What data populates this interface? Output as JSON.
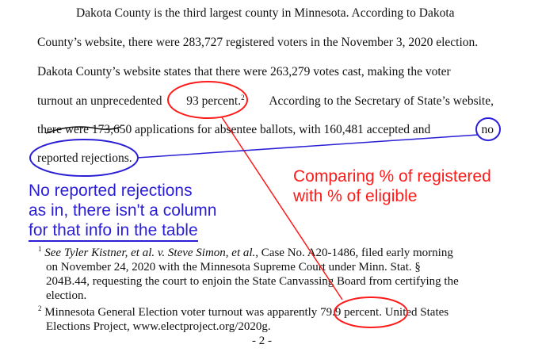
{
  "paragraph": {
    "line1": "Dakota County is the third largest county in Minnesota.  According to Dakota",
    "line2": "County’s website, there were 283,727 registered voters in the November 3, 2020 election.",
    "line3": "Dakota County’s website states that there were 263,279 votes cast, making the voter",
    "line4_a": "turnout an unprecedented",
    "line4_b": "93 percent.",
    "line4_sup": "2",
    "line4_c": "According to the Secretary of State’s website,",
    "line5_a": "there were 173,650 applications for absentee ballots, with 160,481 accepted and",
    "line5_b": "no",
    "line6": "reported rejections."
  },
  "annotations": {
    "blue_note": [
      "No reported rejections",
      "as in, there isn't a column",
      "for that info in the table"
    ],
    "red_note": [
      "Comparing % of registered",
      "with % of eligible"
    ],
    "colors": {
      "blue": "#2b1fd6",
      "red": "#ff1a1a"
    }
  },
  "footnotes": {
    "fn1_num": "1",
    "fn1_italic": "See Tyler Kistner, et al. v. Steve Simon, et al.",
    "fn1_rest": ", Case No. A20-1486, filed early morning",
    "fn1_line2": "on November 24, 2020 with the Minnesota Supreme Court under Minn. Stat. §",
    "fn1_line3": "204B.44, requesting the court to enjoin the State Canvassing Board from certifying the",
    "fn1_line4": "election.",
    "fn2_num": "2",
    "fn2_a": "Minnesota General Election voter turnout was apparently",
    "fn2_b": "79.9 percent.",
    "fn2_c": "United States",
    "fn2_line2": "Elections Project, www.electproject.org/2020g."
  },
  "page_number": "- 2 -"
}
